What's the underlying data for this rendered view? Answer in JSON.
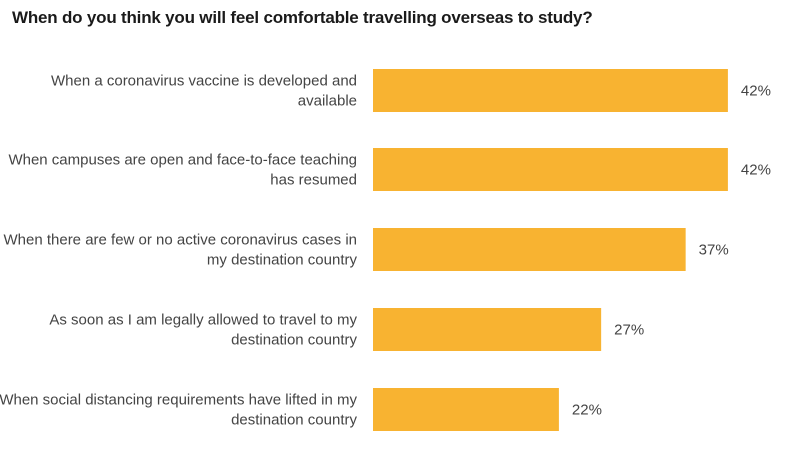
{
  "title": "When do you think you will feel comfortable travelling overseas to study?",
  "chart_data": {
    "type": "bar",
    "orientation": "horizontal",
    "title": "When do you think you will feel comfortable travelling overseas to study?",
    "categories": [
      [
        "When a coronavirus vaccine is developed and",
        "available"
      ],
      [
        "When campuses are open and face-to-face teaching",
        "has resumed"
      ],
      [
        "When there are few or no active coronavirus cases in",
        "my destination country"
      ],
      [
        "As soon as I am legally allowed to travel to my",
        "destination country"
      ],
      [
        "When social distancing requirements have lifted in my",
        "destination country"
      ]
    ],
    "values": [
      42,
      42,
      37,
      27,
      22
    ],
    "value_labels": [
      "42%",
      "42%",
      "37%",
      "27%",
      "22%"
    ],
    "unit": "%",
    "bar_color": "#F8B331",
    "grid": false,
    "legend": "none"
  }
}
